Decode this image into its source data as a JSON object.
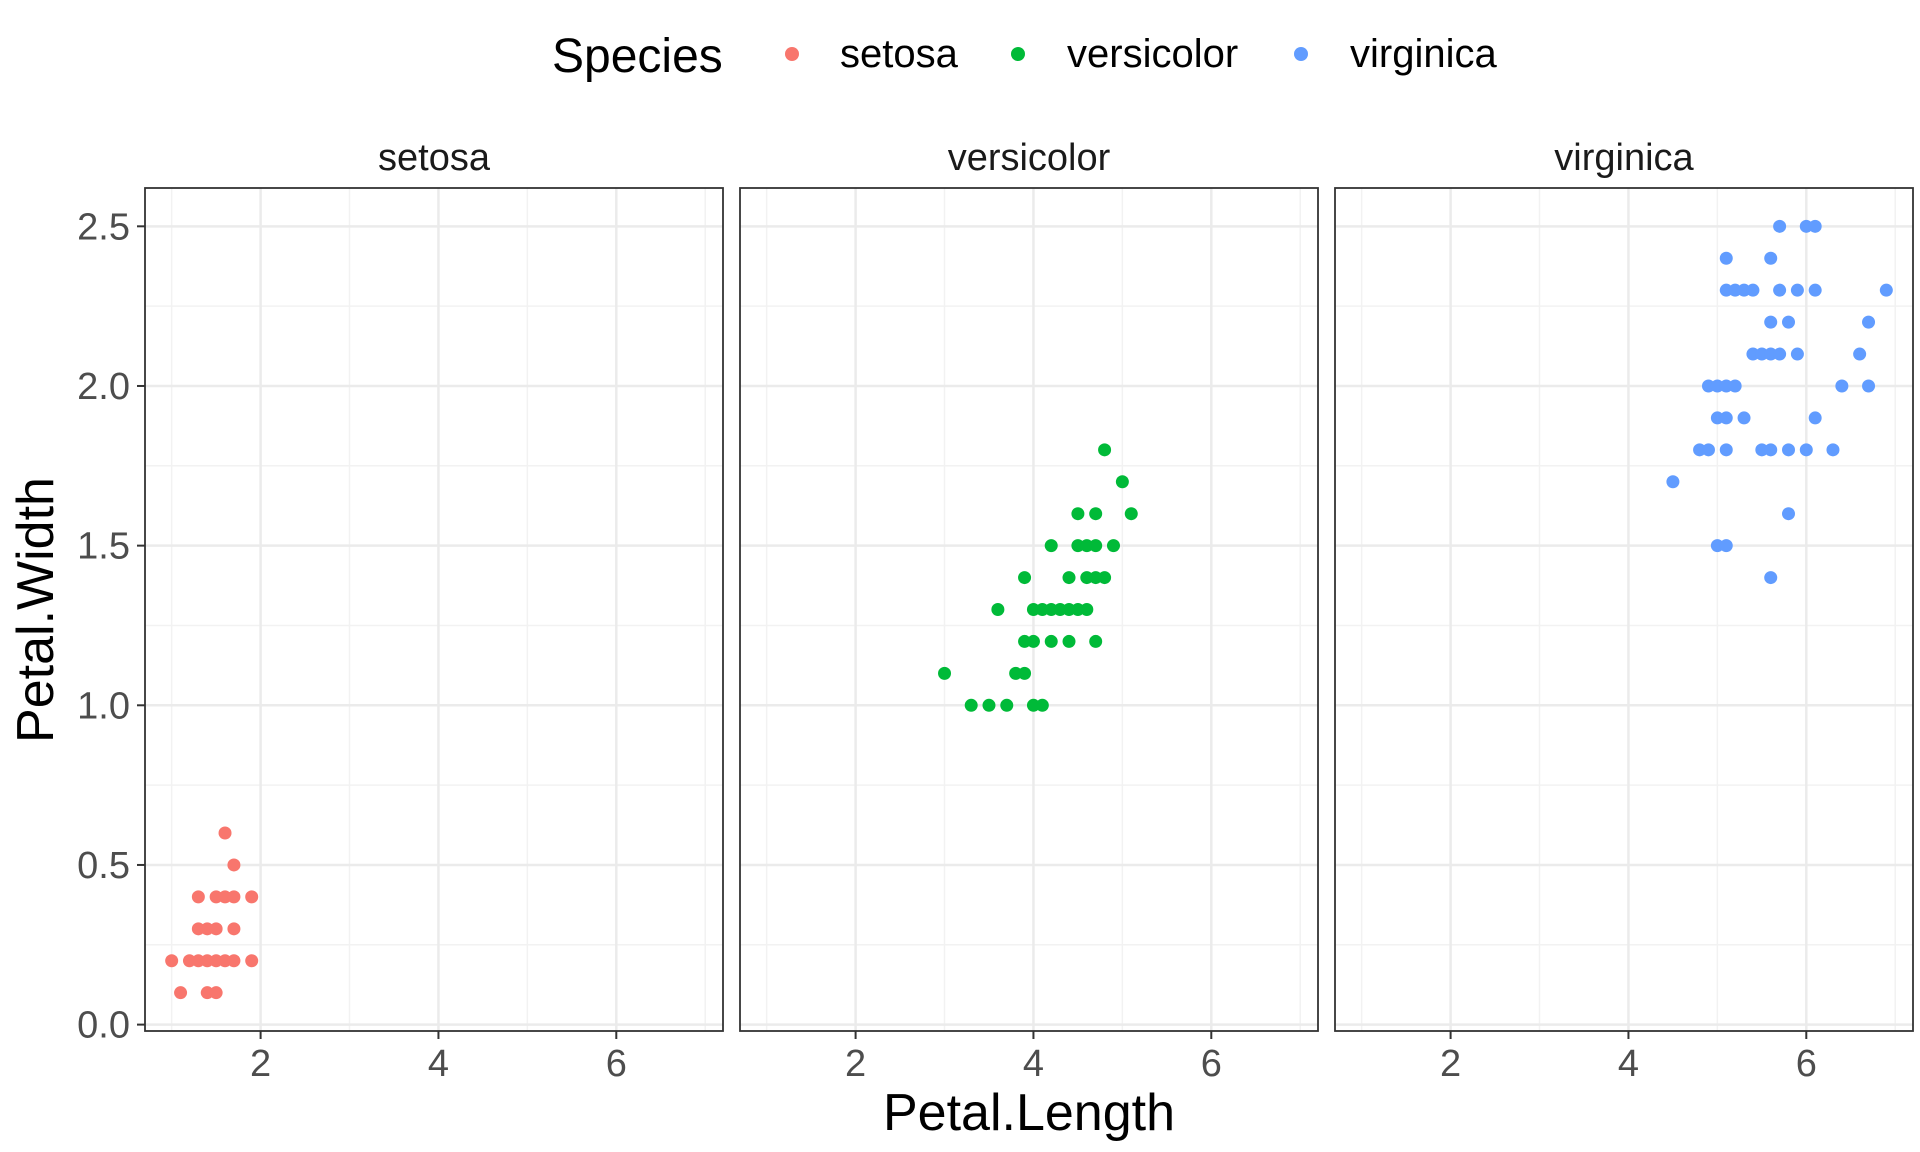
{
  "chart_data": {
    "type": "scatter",
    "facet_by": "Species",
    "xlabel": "Petal.Length",
    "ylabel": "Petal.Width",
    "xlim": [
      0.7,
      7.2
    ],
    "ylim": [
      -0.02,
      2.62
    ],
    "x_ticks": [
      2,
      4,
      6
    ],
    "y_ticks": [
      0.0,
      0.5,
      1.0,
      1.5,
      2.0,
      2.5
    ],
    "y_tick_labels": [
      "0.0",
      "0.5",
      "1.0",
      "1.5",
      "2.0",
      "2.5"
    ],
    "grid": true,
    "legend": {
      "title": "Species",
      "position": "top",
      "entries": [
        {
          "label": "setosa",
          "color": "#F8766D"
        },
        {
          "label": "versicolor",
          "color": "#00BA38"
        },
        {
          "label": "virginica",
          "color": "#619CFF"
        }
      ]
    },
    "panels": [
      {
        "title": "setosa",
        "color": "#F8766D",
        "points": [
          [
            1.0,
            0.2
          ],
          [
            1.1,
            0.1
          ],
          [
            1.2,
            0.2
          ],
          [
            1.3,
            0.2
          ],
          [
            1.3,
            0.3
          ],
          [
            1.3,
            0.4
          ],
          [
            1.4,
            0.1
          ],
          [
            1.4,
            0.2
          ],
          [
            1.4,
            0.3
          ],
          [
            1.5,
            0.1
          ],
          [
            1.5,
            0.2
          ],
          [
            1.5,
            0.3
          ],
          [
            1.5,
            0.4
          ],
          [
            1.6,
            0.2
          ],
          [
            1.6,
            0.4
          ],
          [
            1.6,
            0.6
          ],
          [
            1.7,
            0.2
          ],
          [
            1.7,
            0.3
          ],
          [
            1.7,
            0.4
          ],
          [
            1.7,
            0.5
          ],
          [
            1.9,
            0.2
          ],
          [
            1.9,
            0.4
          ]
        ]
      },
      {
        "title": "versicolor",
        "color": "#00BA38",
        "points": [
          [
            3.0,
            1.1
          ],
          [
            3.3,
            1.0
          ],
          [
            3.5,
            1.0
          ],
          [
            3.6,
            1.3
          ],
          [
            3.7,
            1.0
          ],
          [
            3.8,
            1.1
          ],
          [
            3.9,
            1.1
          ],
          [
            3.9,
            1.2
          ],
          [
            3.9,
            1.4
          ],
          [
            4.0,
            1.0
          ],
          [
            4.0,
            1.2
          ],
          [
            4.0,
            1.3
          ],
          [
            4.1,
            1.0
          ],
          [
            4.1,
            1.3
          ],
          [
            4.2,
            1.2
          ],
          [
            4.2,
            1.3
          ],
          [
            4.2,
            1.5
          ],
          [
            4.3,
            1.3
          ],
          [
            4.4,
            1.2
          ],
          [
            4.4,
            1.3
          ],
          [
            4.4,
            1.4
          ],
          [
            4.5,
            1.3
          ],
          [
            4.5,
            1.5
          ],
          [
            4.5,
            1.6
          ],
          [
            4.6,
            1.3
          ],
          [
            4.6,
            1.4
          ],
          [
            4.6,
            1.5
          ],
          [
            4.7,
            1.2
          ],
          [
            4.7,
            1.4
          ],
          [
            4.7,
            1.5
          ],
          [
            4.7,
            1.6
          ],
          [
            4.8,
            1.4
          ],
          [
            4.8,
            1.8
          ],
          [
            4.9,
            1.5
          ],
          [
            5.0,
            1.7
          ],
          [
            5.1,
            1.6
          ]
        ]
      },
      {
        "title": "virginica",
        "color": "#619CFF",
        "points": [
          [
            4.5,
            1.7
          ],
          [
            4.8,
            1.8
          ],
          [
            4.9,
            1.8
          ],
          [
            4.9,
            2.0
          ],
          [
            5.0,
            1.5
          ],
          [
            5.0,
            1.9
          ],
          [
            5.0,
            2.0
          ],
          [
            5.1,
            1.5
          ],
          [
            5.1,
            1.8
          ],
          [
            5.1,
            1.9
          ],
          [
            5.1,
            2.0
          ],
          [
            5.1,
            2.3
          ],
          [
            5.1,
            2.4
          ],
          [
            5.2,
            2.0
          ],
          [
            5.2,
            2.3
          ],
          [
            5.3,
            1.9
          ],
          [
            5.3,
            2.3
          ],
          [
            5.4,
            2.1
          ],
          [
            5.4,
            2.3
          ],
          [
            5.5,
            1.8
          ],
          [
            5.5,
            2.1
          ],
          [
            5.6,
            1.4
          ],
          [
            5.6,
            1.8
          ],
          [
            5.6,
            2.1
          ],
          [
            5.6,
            2.2
          ],
          [
            5.6,
            2.4
          ],
          [
            5.7,
            2.1
          ],
          [
            5.7,
            2.3
          ],
          [
            5.7,
            2.5
          ],
          [
            5.8,
            1.6
          ],
          [
            5.8,
            1.8
          ],
          [
            5.8,
            2.2
          ],
          [
            5.9,
            2.1
          ],
          [
            5.9,
            2.3
          ],
          [
            6.0,
            1.8
          ],
          [
            6.0,
            2.5
          ],
          [
            6.1,
            1.9
          ],
          [
            6.1,
            2.3
          ],
          [
            6.1,
            2.5
          ],
          [
            6.3,
            1.8
          ],
          [
            6.4,
            2.0
          ],
          [
            6.6,
            2.1
          ],
          [
            6.7,
            2.0
          ],
          [
            6.7,
            2.2
          ],
          [
            6.9,
            2.3
          ]
        ]
      }
    ]
  }
}
